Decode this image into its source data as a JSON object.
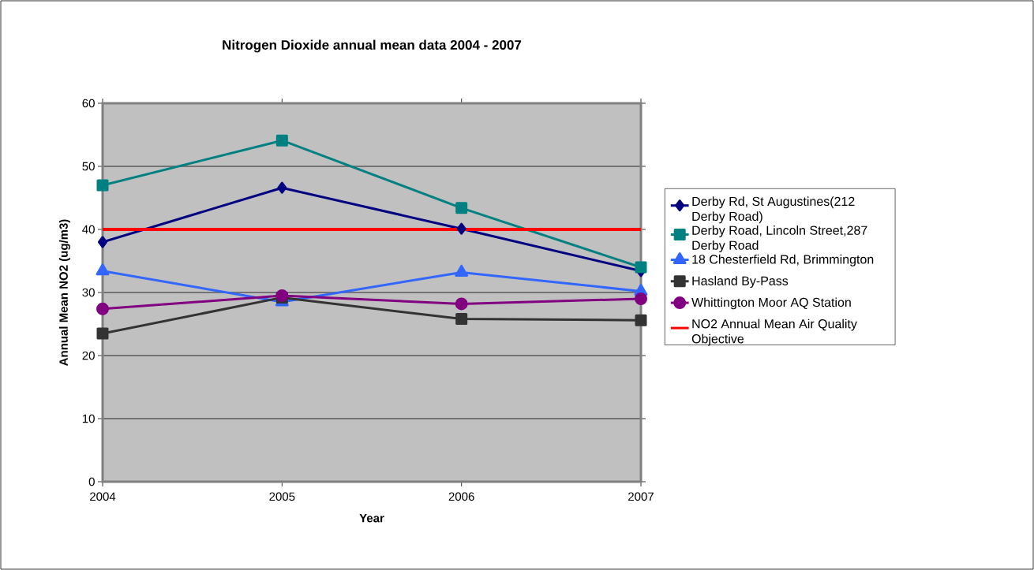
{
  "chart_data": {
    "type": "line",
    "title": "Nitrogen Dioxide annual mean data 2004 - 2007",
    "xlabel": "Year",
    "ylabel": "Annual Mean NO2 (ug/m3)",
    "x": [
      2004,
      2005,
      2006,
      2007
    ],
    "series": [
      {
        "name": "Derby Rd, St Augustines(212 Derby Road)",
        "color": "#000080",
        "marker": "diamond",
        "values": [
          38.0,
          46.6,
          40.1,
          33.4
        ]
      },
      {
        "name": "Derby Road, Lincoln Street,287 Derby Road",
        "color": "#008080",
        "marker": "square",
        "values": [
          47.0,
          54.1,
          43.4,
          34.0
        ]
      },
      {
        "name": "18 Chesterfield Rd, Brimmington",
        "color": "#3366ff",
        "marker": "triangle",
        "values": [
          33.4,
          28.5,
          33.2,
          30.2
        ]
      },
      {
        "name": "Hasland By-Pass",
        "color": "#333333",
        "marker": "square",
        "values": [
          23.5,
          29.2,
          25.8,
          25.6
        ]
      },
      {
        "name": "Whittington Moor AQ Station",
        "color": "#800080",
        "marker": "circle",
        "values": [
          27.4,
          29.5,
          28.2,
          29.0
        ]
      },
      {
        "name": "NO2 Annual Mean Air Quality Objective",
        "color": "#ff0000",
        "marker": "none",
        "values": [
          40,
          40,
          40,
          40
        ]
      }
    ],
    "xlim": [
      2004,
      2007
    ],
    "xticks": [
      2004,
      2005,
      2006,
      2007
    ],
    "ylim": [
      0,
      60
    ],
    "yticks": [
      0,
      10,
      20,
      30,
      40,
      50,
      60
    ],
    "grid": "y",
    "legend": "right"
  }
}
